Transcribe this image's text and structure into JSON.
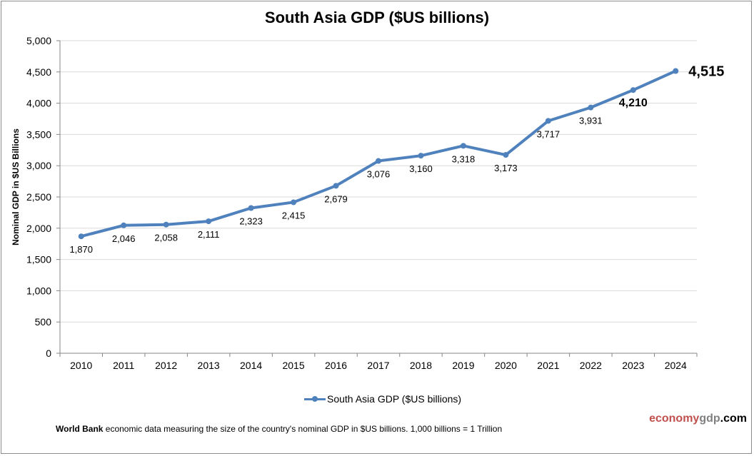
{
  "chart_data": {
    "type": "line",
    "title": "South Asia GDP ($US billions)",
    "xlabel": "",
    "ylabel": "Nominal GDP in $US Billions",
    "ylim": [
      0,
      5000
    ],
    "yticks": [
      0,
      500,
      1000,
      1500,
      2000,
      2500,
      3000,
      3500,
      4000,
      4500,
      5000
    ],
    "ytick_labels": [
      "0",
      "500",
      "1,000",
      "1,500",
      "2,000",
      "2,500",
      "3,000",
      "3,500",
      "4,000",
      "4,500",
      "5,000"
    ],
    "grid": true,
    "legend_position": "bottom",
    "categories": [
      "2010",
      "2011",
      "2012",
      "2013",
      "2014",
      "2015",
      "2016",
      "2017",
      "2018",
      "2019",
      "2020",
      "2021",
      "2022",
      "2023",
      "2024"
    ],
    "series": [
      {
        "name": "South Asia GDP ($US billions)",
        "color": "#4f81bd",
        "values": [
          1870,
          2046,
          2058,
          2111,
          2323,
          2415,
          2679,
          3076,
          3160,
          3318,
          3173,
          3717,
          3931,
          4210,
          4515
        ],
        "labels": [
          "1,870",
          "2,046",
          "2,058",
          "2,111",
          "2,323",
          "2,415",
          "2,679",
          "3,076",
          "3,160",
          "3,318",
          "3,173",
          "3,717",
          "3,931",
          "4,210",
          "4,515"
        ]
      }
    ]
  },
  "legend": {
    "label": "South Asia GDP ($US billions)"
  },
  "footnote": {
    "bold": "World Bank",
    "text": " economic data  measuring the size of the country's nominal GDP in $US billions. 1,000 billions = 1 Trillion"
  },
  "brand": {
    "part1": "economy",
    "part2": "gdp",
    "part3": ".com"
  }
}
